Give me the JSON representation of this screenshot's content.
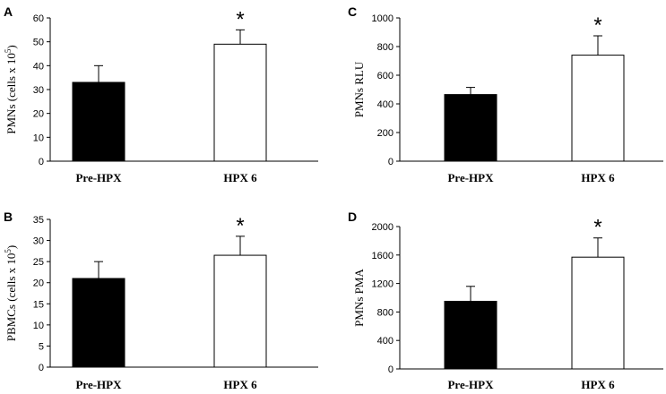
{
  "chart_data": [
    {
      "type": "bar",
      "panel_label": "A",
      "ylabel": "PMNs (cells x 10",
      "ylabel_sup": "5",
      "ylabel_tail": ")",
      "categories": [
        "Pre-HPX",
        "HPX 6"
      ],
      "values": [
        33,
        49
      ],
      "errors": [
        7,
        6
      ],
      "bar_colors": [
        "#000000",
        "#ffffff"
      ],
      "significance": [
        "",
        "*"
      ],
      "ylim": [
        0,
        60
      ],
      "yticks": [
        0,
        10,
        20,
        30,
        40,
        50,
        60
      ],
      "grid": false
    },
    {
      "type": "bar",
      "panel_label": "B",
      "ylabel": "PBMCs (cells x 10",
      "ylabel_sup": "5",
      "ylabel_tail": ")",
      "categories": [
        "Pre-HPX",
        "HPX 6"
      ],
      "values": [
        21,
        26.5
      ],
      "errors": [
        4,
        4.5
      ],
      "bar_colors": [
        "#000000",
        "#ffffff"
      ],
      "significance": [
        "",
        "*"
      ],
      "ylim": [
        0,
        35
      ],
      "yticks": [
        0,
        5,
        10,
        15,
        20,
        25,
        30,
        35
      ],
      "grid": false
    },
    {
      "type": "bar",
      "panel_label": "C",
      "ylabel": "PMNs RLU",
      "ylabel_sup": "",
      "ylabel_tail": "",
      "categories": [
        "Pre-HPX",
        "HPX 6"
      ],
      "values": [
        465,
        740
      ],
      "errors": [
        50,
        135
      ],
      "bar_colors": [
        "#000000",
        "#ffffff"
      ],
      "significance": [
        "",
        "*"
      ],
      "ylim": [
        0,
        1000
      ],
      "yticks": [
        0,
        200,
        400,
        600,
        800,
        1000
      ],
      "grid": false
    },
    {
      "type": "bar",
      "panel_label": "D",
      "ylabel": "PMNs PMA",
      "ylabel_sup": "",
      "ylabel_tail": "",
      "categories": [
        "Pre-HPX",
        "HPX 6"
      ],
      "values": [
        950,
        1570
      ],
      "errors": [
        210,
        270
      ],
      "bar_colors": [
        "#000000",
        "#ffffff"
      ],
      "significance": [
        "",
        "*"
      ],
      "ylim": [
        0,
        2000
      ],
      "yticks": [
        0,
        400,
        800,
        1200,
        1600,
        2000
      ],
      "grid": false
    }
  ]
}
